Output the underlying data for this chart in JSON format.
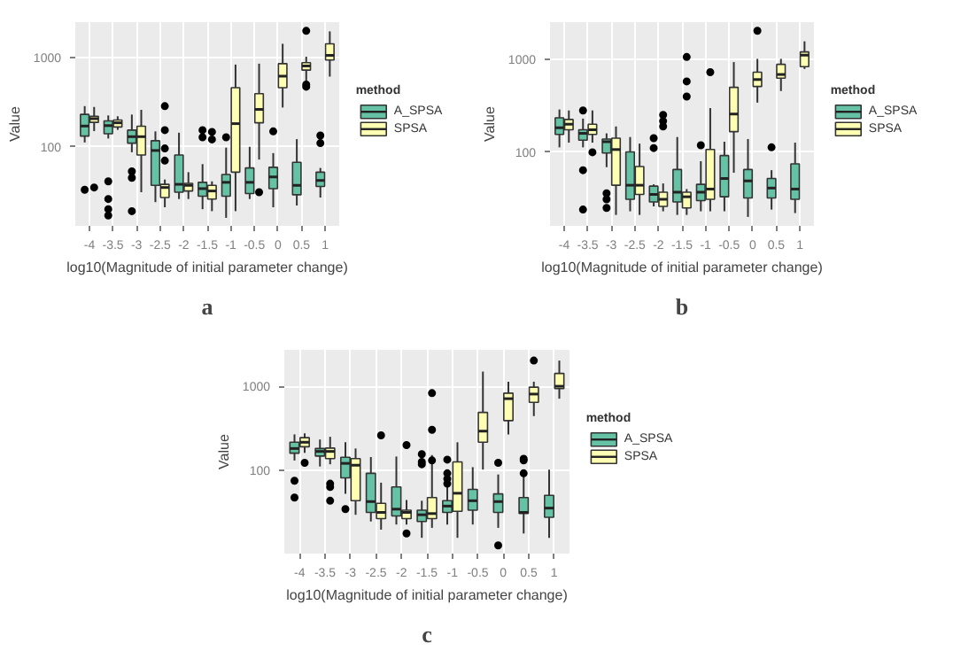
{
  "chart_data": [
    {
      "type": "box",
      "xlabel": "log10(Magnitude of initial parameter change)",
      "ylabel": "Value",
      "legend_title": "method",
      "legend": "right",
      "grid": true,
      "log": true,
      "ylim": [
        13,
        2500
      ],
      "yticks": [
        100,
        1000
      ],
      "annotations": [
        "a"
      ],
      "categories": [
        "-4",
        "-3.5",
        "-3",
        "-2.5",
        "-2",
        "-1.5",
        "-1",
        "-0.5",
        "0",
        "0.5",
        "1"
      ],
      "series": [
        {
          "name": "A_SPSA",
          "color": "#66c2a5",
          "boxes": [
            {
              "low": 112,
              "q1": 132,
              "median": 171,
              "q3": 231,
              "high": 286,
              "outliers": [
                33
              ]
            },
            {
              "low": 124,
              "q1": 140,
              "median": 173,
              "q3": 195,
              "high": 225,
              "outliers": [
                41,
                26,
                20,
                17
              ]
            },
            {
              "low": 87,
              "q1": 110,
              "median": 130,
              "q3": 154,
              "high": 230,
              "outliers": [
                53,
                45,
                19
              ]
            },
            {
              "low": 24,
              "q1": 37,
              "median": 91,
              "q3": 117,
              "high": 149
            },
            {
              "low": 26,
              "q1": 31,
              "median": 38,
              "q3": 81,
              "high": 144
            },
            {
              "low": 20,
              "q1": 28,
              "median": 34,
              "q3": 40,
              "high": 64,
              "outliers": [
                154,
                128
              ]
            },
            {
              "low": 16,
              "q1": 28,
              "median": 40,
              "q3": 49,
              "high": 98,
              "outliers": [
                128
              ]
            },
            {
              "low": 26,
              "q1": 30,
              "median": 40,
              "q3": 58,
              "high": 100
            },
            {
              "low": 21,
              "q1": 34,
              "median": 46,
              "q3": 59,
              "high": 85,
              "outliers": [
                149
              ]
            },
            {
              "low": 22,
              "q1": 29,
              "median": 37,
              "q3": 67,
              "high": 122
            },
            {
              "low": 27,
              "q1": 36,
              "median": 42,
              "q3": 52,
              "high": 58,
              "outliers": [
                134,
                110
              ]
            }
          ]
        },
        {
          "name": "SPSA",
          "color": "#ffffb3",
          "boxes": [
            {
              "low": 150,
              "q1": 188,
              "median": 207,
              "q3": 220,
              "high": 280,
              "outliers": [
                35
              ]
            },
            {
              "low": 155,
              "q1": 167,
              "median": 186,
              "q3": 200,
              "high": 220
            },
            {
              "low": 31,
              "q1": 81,
              "median": 130,
              "q3": 170,
              "high": 260
            },
            {
              "low": 21,
              "q1": 27,
              "median": 35,
              "q3": 38,
              "high": 43,
              "outliers": [
                286,
                154,
                96,
                70
              ]
            },
            {
              "low": 26,
              "q1": 32,
              "median": 37,
              "q3": 39,
              "high": 52
            },
            {
              "low": 19,
              "q1": 26,
              "median": 32,
              "q3": 37,
              "high": 41,
              "outliers": [
                147,
                121
              ]
            },
            {
              "low": 19,
              "q1": 52,
              "median": 182,
              "q3": 460,
              "high": 836
            },
            {
              "low": 72,
              "q1": 186,
              "median": 263,
              "q3": 395,
              "high": 856,
              "outliers": [
                31
              ]
            },
            {
              "low": 276,
              "q1": 460,
              "median": 620,
              "q3": 856,
              "high": 1430
            },
            {
              "low": 489,
              "q1": 725,
              "median": 807,
              "q3": 877,
              "high": 1024,
              "outliers": [
                1995,
                500,
                472
              ]
            },
            {
              "low": 613,
              "q1": 942,
              "median": 1061,
              "q3": 1430,
              "high": 1970
            }
          ]
        }
      ]
    },
    {
      "type": "box",
      "xlabel": "log10(Magnitude of initial parameter change)",
      "ylabel": "Value",
      "legend_title": "method",
      "legend": "right",
      "grid": true,
      "log": true,
      "ylim": [
        16,
        2550
      ],
      "yticks": [
        100,
        1000
      ],
      "annotations": [
        "b"
      ],
      "categories": [
        "-4",
        "-3.5",
        "-3",
        "-2.5",
        "-2",
        "-1.5",
        "-1",
        "-0.5",
        "0",
        "0.5",
        "1"
      ],
      "series": [
        {
          "name": "A_SPSA",
          "color": "#66c2a5",
          "boxes": [
            {
              "low": 113,
              "q1": 156,
              "median": 184,
              "q3": 236,
              "high": 290
            },
            {
              "low": 113,
              "q1": 135,
              "median": 160,
              "q3": 175,
              "high": 231,
              "outliers": [
                283,
                64,
                24
              ]
            },
            {
              "low": 69,
              "q1": 98,
              "median": 130,
              "q3": 139,
              "high": 160,
              "outliers": [
                36,
                31,
                25
              ]
            },
            {
              "low": 23,
              "q1": 31,
              "median": 44,
              "q3": 101,
              "high": 146
            },
            {
              "low": 26,
              "q1": 29,
              "median": 35,
              "q3": 43,
              "high": 45,
              "outliers": [
                142,
                111
              ]
            },
            {
              "low": 21,
              "q1": 29,
              "median": 37,
              "q3": 65,
              "high": 146
            },
            {
              "low": 23,
              "q1": 30,
              "median": 37,
              "q3": 45,
              "high": 80,
              "outliers": [
                119
              ]
            },
            {
              "low": 23,
              "q1": 33,
              "median": 52,
              "q3": 92,
              "high": 130
            },
            {
              "low": 20,
              "q1": 32,
              "median": 49,
              "q3": 65,
              "high": 139
            },
            {
              "low": 24,
              "q1": 32,
              "median": 41,
              "q3": 52,
              "high": 64,
              "outliers": [
                113
              ]
            },
            {
              "low": 22,
              "q1": 31,
              "median": 40,
              "q3": 75,
              "high": 127
            }
          ]
        },
        {
          "name": "SPSA",
          "color": "#ffffb3",
          "boxes": [
            {
              "low": 127,
              "q1": 175,
              "median": 201,
              "q3": 226,
              "high": 283
            },
            {
              "low": 127,
              "q1": 156,
              "median": 175,
              "q3": 201,
              "high": 283,
              "outliers": [
                100
              ]
            },
            {
              "low": 21,
              "q1": 44,
              "median": 107,
              "q3": 142,
              "high": 190
            },
            {
              "low": 21,
              "q1": 35,
              "median": 44,
              "q3": 70,
              "high": 124
            },
            {
              "low": 23,
              "q1": 26,
              "median": 31,
              "q3": 37,
              "high": 46,
              "outliers": [
                253,
                217,
                190
              ]
            },
            {
              "low": 21,
              "q1": 25,
              "median": 33,
              "q3": 37,
              "high": 40,
              "outliers": [
                1071,
                583,
                400
              ]
            },
            {
              "low": 23,
              "q1": 31,
              "median": 40,
              "q3": 107,
              "high": 300,
              "outliers": [
                734
              ]
            },
            {
              "low": 60,
              "q1": 167,
              "median": 259,
              "q3": 503,
              "high": 944
            },
            {
              "low": 344,
              "q1": 514,
              "median": 611,
              "q3": 734,
              "high": 1023,
              "outliers": [
                2058
              ]
            },
            {
              "low": 459,
              "q1": 632,
              "median": 693,
              "q3": 892,
              "high": 1023
            },
            {
              "low": 795,
              "q1": 842,
              "median": 1121,
              "q3": 1215,
              "high": 1582
            }
          ]
        }
      ]
    },
    {
      "type": "box",
      "xlabel": "log10(Magnitude of initial parameter change)",
      "ylabel": "Value",
      "legend_title": "method",
      "legend": "right",
      "grid": true,
      "log": true,
      "ylim": [
        10.4,
        2700
      ],
      "yticks": [
        100,
        1000
      ],
      "annotations": [
        "c"
      ],
      "categories": [
        "-4",
        "-3.5",
        "-3",
        "-2.5",
        "-2",
        "-1.5",
        "-1",
        "-0.5",
        "0",
        "0.5",
        "1"
      ],
      "series": [
        {
          "name": "A_SPSA",
          "color": "#66c2a5",
          "boxes": [
            {
              "low": 132,
              "q1": 161,
              "median": 183,
              "q3": 217,
              "high": 269,
              "outliers": [
                76,
                48
              ]
            },
            {
              "low": 112,
              "q1": 149,
              "median": 169,
              "q3": 183,
              "high": 234
            },
            {
              "low": 53,
              "q1": 82,
              "median": 122,
              "q3": 144,
              "high": 217,
              "outliers": [
                35
              ]
            },
            {
              "low": 25,
              "q1": 32,
              "median": 43,
              "q3": 93,
              "high": 145
            },
            {
              "low": 23,
              "q1": 29,
              "median": 35,
              "q3": 64,
              "high": 147
            },
            {
              "low": 16,
              "q1": 25,
              "median": 30,
              "q3": 34,
              "high": 44,
              "outliers": [
                157,
                127,
                119
              ]
            },
            {
              "low": 23,
              "q1": 32,
              "median": 38,
              "q3": 44,
              "high": 68,
              "outliers": [
                135,
                93,
                80,
                70
              ]
            },
            {
              "low": 23,
              "q1": 34,
              "median": 44,
              "q3": 60,
              "high": 110
            },
            {
              "low": 21,
              "q1": 32,
              "median": 43,
              "q3": 53,
              "high": 90,
              "outliers": [
                124,
                13
              ]
            },
            {
              "low": 18,
              "q1": 31,
              "median": 32,
              "q3": 48,
              "high": 97,
              "outliers": [
                138,
                132,
                93
              ]
            },
            {
              "low": 16,
              "q1": 28,
              "median": 36,
              "q3": 51,
              "high": 103
            }
          ]
        },
        {
          "name": "SPSA",
          "color": "#ffffb3",
          "boxes": [
            {
              "low": 163,
              "q1": 192,
              "median": 217,
              "q3": 246,
              "high": 276,
              "outliers": [
                124
              ]
            },
            {
              "low": 119,
              "q1": 139,
              "median": 169,
              "q3": 185,
              "high": 252,
              "outliers": [
                70,
                64,
                44
              ]
            },
            {
              "low": 30,
              "q1": 44,
              "median": 116,
              "q3": 139,
              "high": 183
            },
            {
              "low": 20,
              "q1": 27,
              "median": 32,
              "q3": 41,
              "high": 72,
              "outliers": [
                262
              ]
            },
            {
              "low": 23,
              "q1": 27,
              "median": 32,
              "q3": 34,
              "high": 45,
              "outliers": [
                201,
                18
              ]
            },
            {
              "low": 21,
              "q1": 27,
              "median": 31,
              "q3": 48,
              "high": 153,
              "outliers": [
                829,
                305,
                132
              ]
            },
            {
              "low": 16,
              "q1": 33,
              "median": 54,
              "q3": 127,
              "high": 217
            },
            {
              "low": 103,
              "q1": 217,
              "median": 294,
              "q3": 490,
              "high": 1492
            },
            {
              "low": 269,
              "q1": 392,
              "median": 713,
              "q3": 829,
              "high": 1133
            },
            {
              "low": 443,
              "q1": 645,
              "median": 808,
              "q3": 976,
              "high": 1133,
              "outliers": [
                2016
              ]
            },
            {
              "low": 713,
              "q1": 939,
              "median": 1000,
              "q3": 1419,
              "high": 2016
            }
          ]
        }
      ]
    }
  ]
}
